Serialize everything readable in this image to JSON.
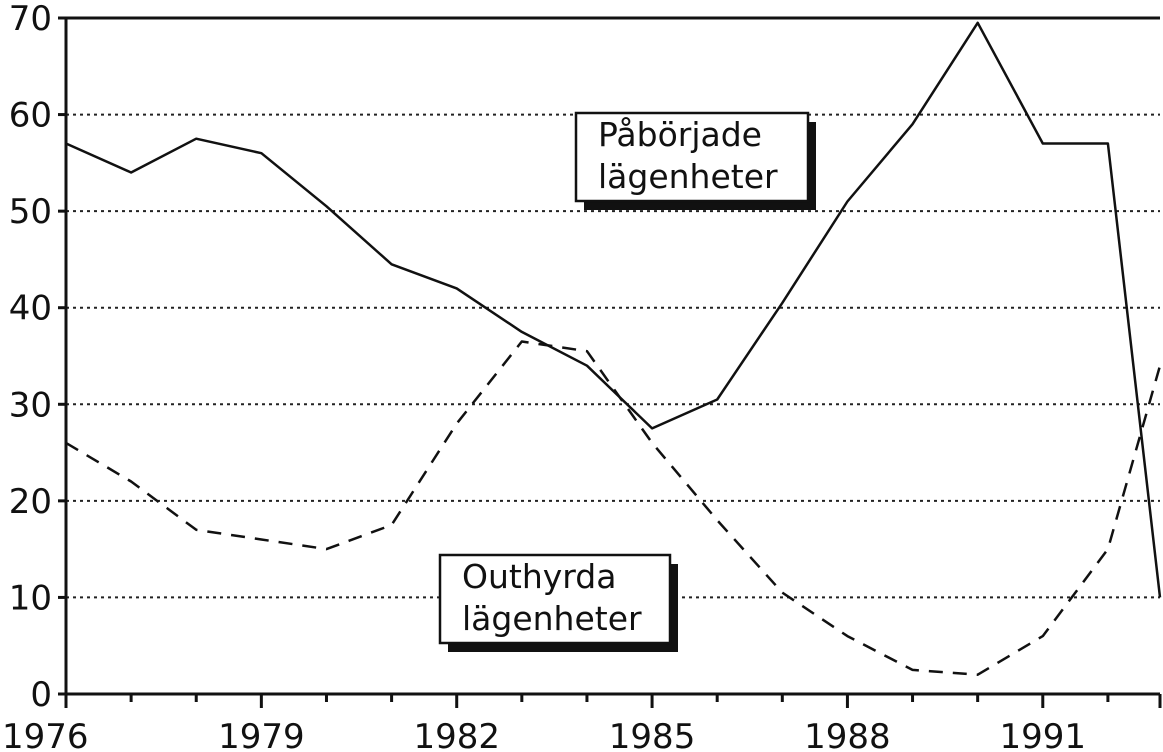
{
  "chart_data": {
    "type": "line",
    "title": "",
    "xlabel": "",
    "ylabel": "",
    "xlim": [
      1976,
      1992.8
    ],
    "ylim": [
      0,
      70
    ],
    "grid": true,
    "x_ticks": [
      "1976",
      "1979",
      "1982",
      "1985",
      "1988",
      "1991"
    ],
    "y_ticks": [
      "0",
      "10",
      "20",
      "30",
      "40",
      "50",
      "60",
      "70"
    ],
    "series": [
      {
        "name": "Påbörjade lägenheter",
        "style": "solid",
        "x": [
          1976,
          1977,
          1978,
          1979,
          1980,
          1981,
          1982,
          1983,
          1984,
          1985,
          1986,
          1987,
          1988,
          1989,
          1990,
          1991,
          1992,
          1992.8
        ],
        "y": [
          57,
          54,
          57.5,
          56,
          50.5,
          44.5,
          42,
          37.5,
          34,
          27.5,
          30.5,
          40.5,
          51,
          59,
          69.5,
          57,
          57,
          10
        ]
      },
      {
        "name": "Outhyrda lägenheter",
        "style": "dashed",
        "x": [
          1976,
          1977,
          1978,
          1979,
          1980,
          1981,
          1982,
          1983,
          1984,
          1985,
          1986,
          1987,
          1988,
          1989,
          1990,
          1991,
          1992,
          1992.8
        ],
        "y": [
          26,
          22,
          17,
          16,
          15,
          17.5,
          28,
          36.5,
          35.5,
          26,
          18,
          10.5,
          6,
          2.5,
          2,
          6,
          15,
          34
        ]
      }
    ],
    "annotations": [
      {
        "line1": "Påbörjade",
        "line2": "lägenheter"
      },
      {
        "line1": "Outhyrda",
        "line2": "lägenheter"
      }
    ]
  }
}
